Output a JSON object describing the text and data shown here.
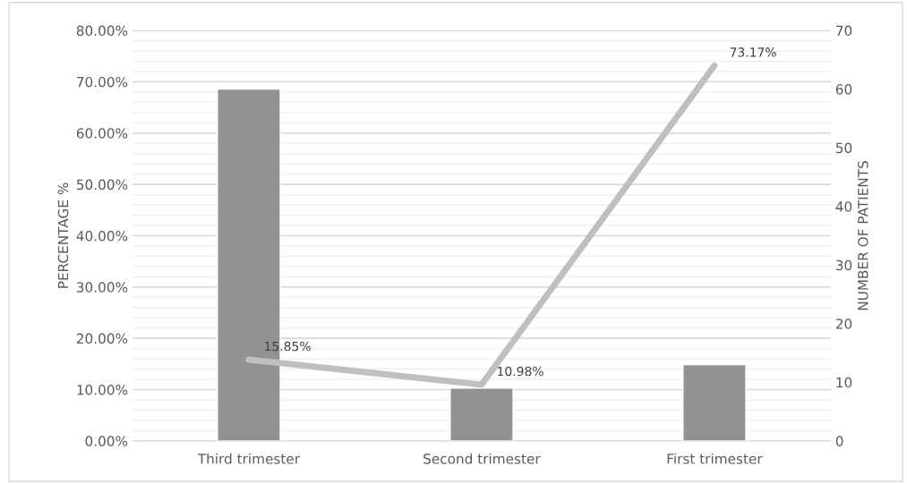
{
  "chart_data": {
    "type": "bar",
    "categories": [
      "Third trimester",
      "Second trimester",
      "First trimester"
    ],
    "ylabel": "PERCENTAGE %",
    "y2label": "NUMBER OF PATIENTS",
    "series": [
      {
        "axis": "y2",
        "color": "#929292",
        "values": [
          60,
          9,
          13
        ]
      },
      {
        "type": "line",
        "axis": "y",
        "color": "#bfbfbf",
        "values": [
          15.85,
          10.98,
          73.17
        ],
        "value_labels": [
          "15.85%",
          "10.98%",
          "73.17%"
        ],
        "marker": "none",
        "line_style": "solid"
      }
    ],
    "ylim": [
      0,
      80
    ],
    "yticks": [
      {
        "value": 0,
        "label": "0.00%"
      },
      {
        "value": 10,
        "label": "10.00%"
      },
      {
        "value": 20,
        "label": "20.00%"
      },
      {
        "value": 30,
        "label": "30.00%"
      },
      {
        "value": 40,
        "label": "40.00%"
      },
      {
        "value": 50,
        "label": "50.00%"
      },
      {
        "value": 60,
        "label": "60.00%"
      },
      {
        "value": 70,
        "label": "70.00%"
      },
      {
        "value": 80,
        "label": "80.00%"
      }
    ],
    "y2lim": [
      0,
      70
    ],
    "y2ticks": [
      0,
      10,
      20,
      30,
      40,
      50,
      60,
      70
    ],
    "grid": "y"
  }
}
